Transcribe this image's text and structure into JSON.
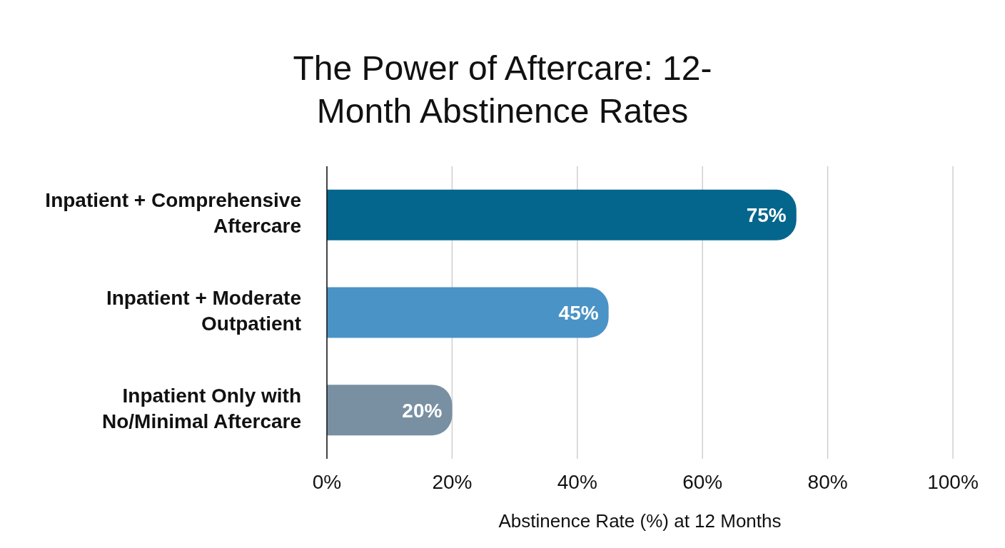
{
  "chart_data": {
    "type": "bar",
    "orientation": "horizontal",
    "title": "The Power of Aftercare: 12-Month Abstinence Rates",
    "xlabel": "Abstinence Rate (%) at 12 Months",
    "categories": [
      "Inpatient + Comprehensive Aftercare",
      "Inpatient + Moderate Outpatient",
      "Inpatient Only with No/Minimal Aftercare"
    ],
    "values": [
      75,
      45,
      20
    ],
    "colors": [
      "#05668d",
      "#4a93c6",
      "#7890a2"
    ],
    "value_labels": [
      "75%",
      "45%",
      "20%"
    ],
    "xlim": [
      0,
      100
    ],
    "xticks": [
      {
        "value": 0,
        "label": "0%"
      },
      {
        "value": 20,
        "label": "20%"
      },
      {
        "value": 40,
        "label": "40%"
      },
      {
        "value": 60,
        "label": "60%"
      },
      {
        "value": 80,
        "label": "80%"
      },
      {
        "value": 100,
        "label": "100%"
      }
    ],
    "grid": "x",
    "legend": false
  }
}
